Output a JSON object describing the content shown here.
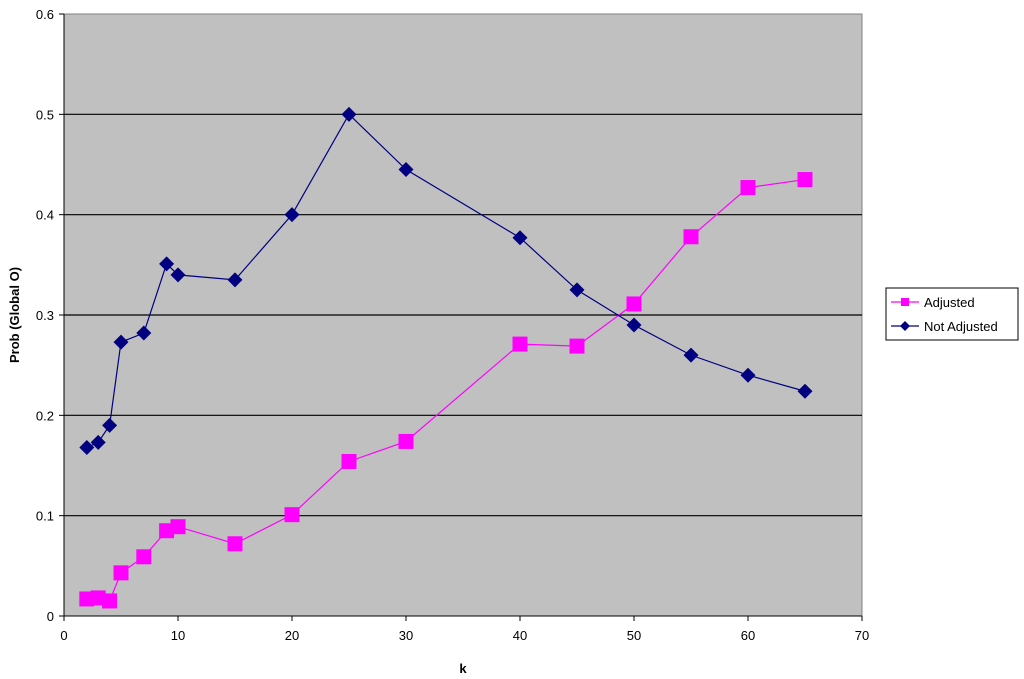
{
  "chart_data": {
    "type": "line",
    "xlabel": "k",
    "ylabel": "Prob (Global O)",
    "xlim": [
      0,
      70
    ],
    "ylim": [
      0,
      0.6
    ],
    "x_ticks": [
      "0",
      "10",
      "20",
      "30",
      "40",
      "50",
      "60",
      "70"
    ],
    "y_ticks": [
      "0",
      "0.1",
      "0.2",
      "0.3",
      "0.4",
      "0.5",
      "0.6"
    ],
    "grid": "horizontal",
    "plot_background": "#c0c0c0",
    "legend_position": "right",
    "series": [
      {
        "name": "Adjusted",
        "color": "#ff00ff",
        "marker": "square",
        "x": [
          2,
          3,
          4,
          5,
          7,
          9,
          10,
          15,
          20,
          25,
          30,
          40,
          45,
          50,
          55,
          60,
          65
        ],
        "y": [
          0.017,
          0.018,
          0.015,
          0.043,
          0.059,
          0.085,
          0.089,
          0.072,
          0.101,
          0.154,
          0.174,
          0.271,
          0.269,
          0.311,
          0.378,
          0.427,
          0.435
        ]
      },
      {
        "name": "Not Adjusted",
        "color": "#000080",
        "marker": "diamond",
        "x": [
          2,
          3,
          4,
          5,
          7,
          9,
          10,
          15,
          20,
          25,
          30,
          40,
          45,
          50,
          55,
          60,
          65
        ],
        "y": [
          0.168,
          0.173,
          0.19,
          0.273,
          0.282,
          0.351,
          0.34,
          0.335,
          0.4,
          0.5,
          0.445,
          0.377,
          0.325,
          0.29,
          0.26,
          0.24,
          0.224
        ]
      }
    ]
  }
}
